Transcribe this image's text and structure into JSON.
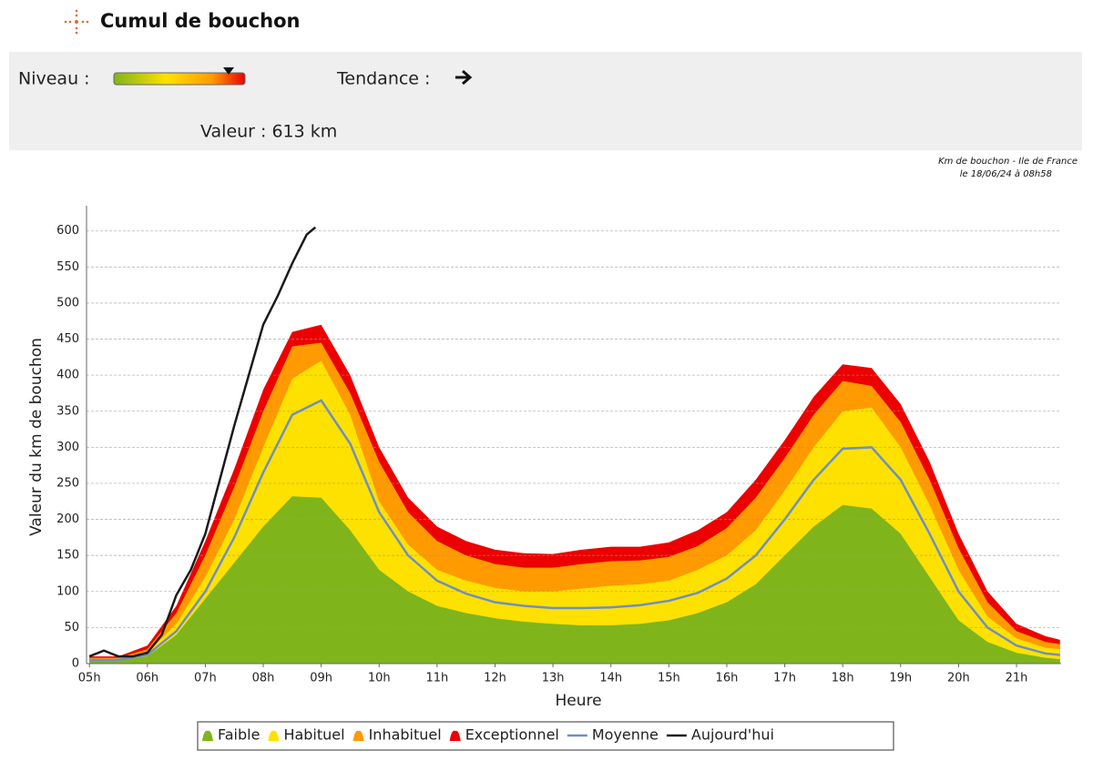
{
  "header": {
    "title": "Cumul de bouchon"
  },
  "panel": {
    "level_label": "Niveau :",
    "trend_label": "Tendance :",
    "value_text": "Valeur : 613 km"
  },
  "note": {
    "line1": "Km de bouchon - Ile de France",
    "line2": "le 18/06/24 à 08h58"
  },
  "chart_data": {
    "type": "area",
    "y_label": "Valeur du  km de bouchon",
    "x_label": "Heure",
    "x": [
      5,
      5.5,
      6,
      6.5,
      7,
      7.5,
      8,
      8.5,
      9,
      9.5,
      10,
      10.5,
      11,
      11.5,
      12,
      12.5,
      13,
      13.5,
      14,
      14.5,
      15,
      15.5,
      16,
      16.5,
      17,
      17.5,
      18,
      18.5,
      19,
      19.5,
      20,
      20.5,
      21,
      21.5,
      21.75
    ],
    "xlim": [
      4.95,
      21.77
    ],
    "xticks": [
      {
        "value": 5,
        "label": "05h"
      },
      {
        "value": 6,
        "label": "06h"
      },
      {
        "value": 7,
        "label": "07h"
      },
      {
        "value": 8,
        "label": "08h"
      },
      {
        "value": 9,
        "label": "09h"
      },
      {
        "value": 10,
        "label": "10h"
      },
      {
        "value": 11,
        "label": "11h"
      },
      {
        "value": 12,
        "label": "12h"
      },
      {
        "value": 13,
        "label": "13h"
      },
      {
        "value": 14,
        "label": "14h"
      },
      {
        "value": 15,
        "label": "15h"
      },
      {
        "value": 16,
        "label": "16h"
      },
      {
        "value": 17,
        "label": "17h"
      },
      {
        "value": 18,
        "label": "18h"
      },
      {
        "value": 19,
        "label": "19h"
      },
      {
        "value": 20,
        "label": "20h"
      },
      {
        "value": 21,
        "label": "21h"
      }
    ],
    "ylim": [
      0,
      635
    ],
    "yticks": [
      0,
      50,
      100,
      150,
      200,
      250,
      300,
      350,
      400,
      450,
      500,
      550,
      600
    ],
    "grid": true,
    "series": [
      {
        "name": "Faible",
        "kind": "area",
        "color": "#7fb51a",
        "values": [
          4,
          4,
          10,
          40,
          90,
          140,
          190,
          232,
          230,
          185,
          130,
          100,
          80,
          70,
          63,
          58,
          55,
          53,
          53,
          55,
          60,
          70,
          85,
          110,
          150,
          190,
          220,
          215,
          180,
          120,
          60,
          30,
          15,
          8,
          6
        ]
      },
      {
        "name": "Habituel",
        "kind": "area",
        "color": "#ffe100",
        "values": [
          6,
          6,
          15,
          55,
          120,
          200,
          300,
          395,
          420,
          345,
          225,
          165,
          130,
          115,
          105,
          100,
          100,
          104,
          108,
          110,
          115,
          130,
          150,
          185,
          240,
          300,
          350,
          355,
          300,
          220,
          130,
          65,
          35,
          22,
          20
        ]
      },
      {
        "name": "Inhabituel",
        "kind": "area",
        "color": "#ff9a00",
        "values": [
          8,
          8,
          20,
          70,
          150,
          245,
          350,
          440,
          445,
          375,
          280,
          210,
          170,
          150,
          138,
          133,
          133,
          138,
          142,
          143,
          148,
          163,
          188,
          230,
          285,
          345,
          392,
          385,
          335,
          255,
          160,
          85,
          45,
          30,
          27
        ]
      },
      {
        "name": "Exceptionnel",
        "kind": "area",
        "color": "#ec0000",
        "values": [
          10,
          10,
          25,
          80,
          170,
          270,
          380,
          460,
          470,
          400,
          300,
          230,
          190,
          170,
          158,
          153,
          152,
          158,
          162,
          162,
          168,
          185,
          210,
          255,
          310,
          370,
          415,
          410,
          360,
          280,
          180,
          100,
          55,
          38,
          33
        ]
      },
      {
        "name": "Moyenne",
        "kind": "line",
        "color": "#6f8fc0",
        "values": [
          5,
          5,
          12,
          45,
          100,
          175,
          265,
          345,
          365,
          305,
          210,
          150,
          115,
          97,
          85,
          80,
          77,
          77,
          78,
          81,
          87,
          98,
          118,
          150,
          200,
          255,
          298,
          300,
          255,
          180,
          100,
          50,
          25,
          14,
          12
        ]
      },
      {
        "name": "Aujourd'hui",
        "kind": "line",
        "color": "#1a1a1a",
        "x": [
          5,
          5.25,
          5.5,
          5.75,
          6,
          6.25,
          6.5,
          6.75,
          7,
          7.25,
          7.5,
          7.75,
          8,
          8.25,
          8.5,
          8.75,
          8.9
        ],
        "values": [
          10,
          18,
          10,
          10,
          15,
          40,
          95,
          130,
          180,
          255,
          330,
          400,
          470,
          510,
          555,
          595,
          605
        ]
      }
    ]
  }
}
